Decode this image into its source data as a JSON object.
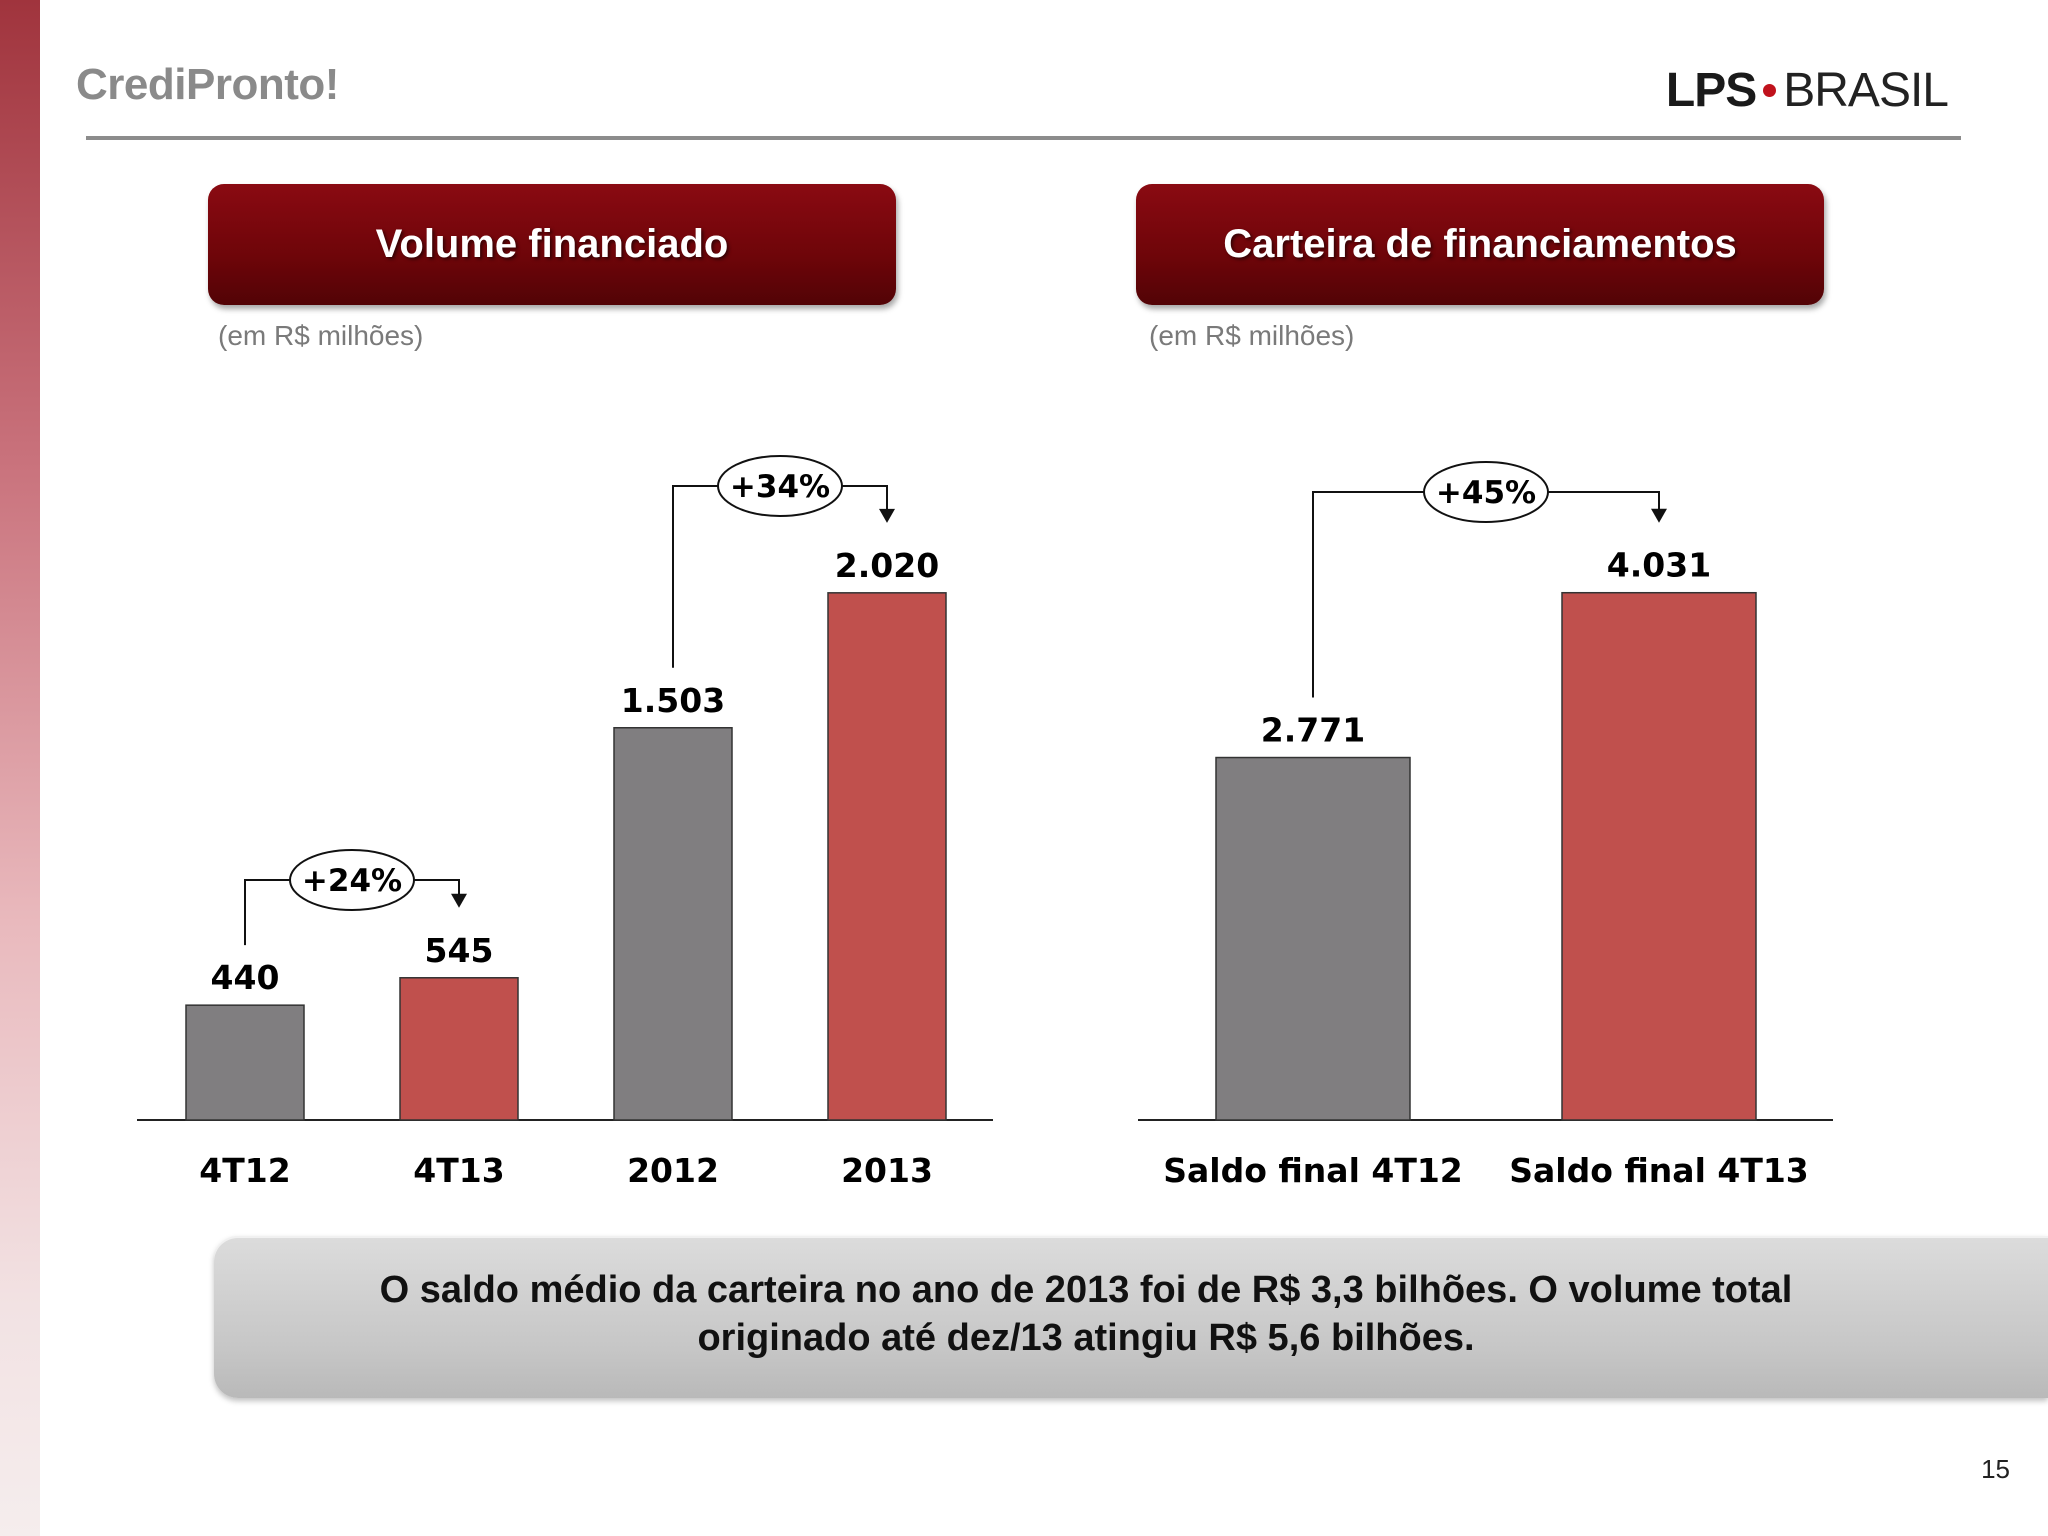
{
  "slide": {
    "title": "CrediPronto!",
    "logo": {
      "left": "LPS",
      "right": "BRASIL"
    },
    "page_number": "15"
  },
  "colors": {
    "gray_bar": "#807e80",
    "red_bar": "#c0504d",
    "header_dark_red": "#6e0509",
    "stripe": "#a0343d"
  },
  "summary": {
    "line1": "O saldo médio da carteira no ano de 2013 foi de R$ 3,3 bilhões. O volume total",
    "line2": "originado até dez/13 atingiu R$ 5,6 bilhões."
  },
  "chart_data": [
    {
      "type": "bar",
      "title": "Volume financiado",
      "subtitle": "(em R$ milhões)",
      "categories": [
        "4T12",
        "4T13",
        "2012",
        "2013"
      ],
      "values": [
        440,
        545,
        1503,
        2020
      ],
      "value_labels": [
        "440",
        "545",
        "1.503",
        "2.020"
      ],
      "bar_colors": [
        "#807e80",
        "#c0504d",
        "#807e80",
        "#c0504d"
      ],
      "growth": [
        {
          "from": 0,
          "to": 1,
          "label": "+24%"
        },
        {
          "from": 2,
          "to": 3,
          "label": "+34%"
        }
      ],
      "ylim": [
        0,
        2050
      ],
      "grid": false,
      "legend": "none"
    },
    {
      "type": "bar",
      "title": "Carteira de financiamentos",
      "subtitle": "(em R$ milhões)",
      "categories": [
        "Saldo final 4T12",
        "Saldo final 4T13"
      ],
      "values": [
        2771,
        4031
      ],
      "value_labels": [
        "2.771",
        "4.031"
      ],
      "bar_colors": [
        "#807e80",
        "#c0504d"
      ],
      "growth": [
        {
          "from": 0,
          "to": 1,
          "label": "+45%"
        }
      ],
      "ylim": [
        0,
        4090
      ],
      "grid": false,
      "legend": "none"
    }
  ]
}
